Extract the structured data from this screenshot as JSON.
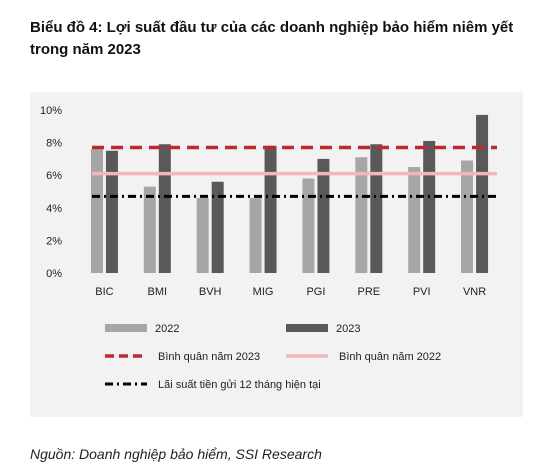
{
  "title": "Biểu đồ 4: Lợi suất đầu tư của các doanh nghiệp bảo hiểm niêm yết trong năm 2023",
  "source": "Nguồn: Doanh nghiệp bảo hiểm, SSI Research",
  "chart_data": {
    "type": "bar",
    "categories": [
      "BIC",
      "BMI",
      "BVH",
      "MIG",
      "PGI",
      "PRE",
      "PVI",
      "VNR"
    ],
    "series": [
      {
        "name": "2022",
        "color": "#a6a6a6",
        "values": [
          7.6,
          5.3,
          4.6,
          4.6,
          5.8,
          7.1,
          6.5,
          6.9
        ]
      },
      {
        "name": "2023",
        "color": "#595959",
        "values": [
          7.5,
          7.9,
          5.6,
          7.8,
          7.0,
          7.9,
          8.1,
          9.7
        ]
      }
    ],
    "reference_lines": [
      {
        "name": "Bình quân năm 2023",
        "value": 7.7,
        "color": "#c0282f",
        "style": "dashed"
      },
      {
        "name": "Bình quân năm 2022",
        "value": 6.1,
        "color": "#f4b6bb",
        "style": "solid"
      },
      {
        "name": "Lãi suất tiền gửi 12 tháng hiện tại",
        "value": 4.7,
        "color": "#000000",
        "style": "dash-dot"
      }
    ],
    "ylim": [
      0,
      10
    ],
    "yticks": [
      "0%",
      "2%",
      "4%",
      "6%",
      "8%",
      "10%"
    ],
    "ytick_values": [
      0,
      2,
      4,
      6,
      8,
      10
    ],
    "grid": false,
    "legend_position": "bottom"
  }
}
